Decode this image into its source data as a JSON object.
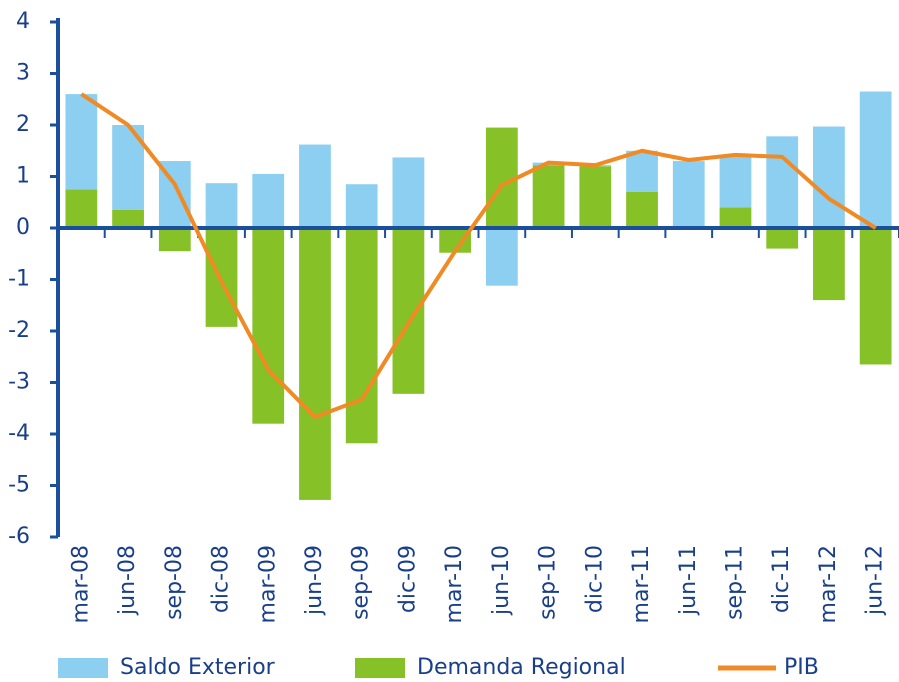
{
  "chart_data": {
    "type": "bar",
    "categories": [
      "mar-08",
      "jun-08",
      "sep-08",
      "dic-08",
      "mar-09",
      "jun-09",
      "sep-09",
      "dic-09",
      "mar-10",
      "jun-10",
      "sep-10",
      "dic-10",
      "mar-11",
      "jun-11",
      "sep-11",
      "dic-11",
      "mar-12",
      "jun-12"
    ],
    "series": [
      {
        "name": "Saldo Exterior",
        "color": "#8ccff0",
        "type": "bar",
        "values": [
          1.85,
          1.65,
          1.3,
          0.87,
          1.05,
          1.62,
          0.85,
          1.37,
          0,
          -1.12,
          0.05,
          0.02,
          0.8,
          1.3,
          1.0,
          1.78,
          1.97,
          2.65
        ]
      },
      {
        "name": "Demanda Regional",
        "color": "#86c227",
        "type": "bar",
        "values": [
          0.75,
          0.35,
          -0.45,
          -1.92,
          -3.8,
          -5.28,
          -4.18,
          -3.22,
          -0.48,
          1.95,
          1.22,
          1.2,
          0.7,
          0,
          0.4,
          -0.4,
          -1.4,
          -2.65
        ]
      },
      {
        "name": "PIB",
        "color": "#f08a24",
        "type": "line",
        "values": [
          2.6,
          2.0,
          0.85,
          -1.05,
          -2.75,
          -3.67,
          -3.33,
          -1.85,
          -0.45,
          0.83,
          1.27,
          1.22,
          1.5,
          1.32,
          1.42,
          1.38,
          0.57,
          0
        ]
      }
    ],
    "stacked": true,
    "ylim": [
      -6,
      4
    ],
    "yticks": [
      -6,
      -5,
      -4,
      -3,
      -2,
      -1,
      0,
      1,
      2,
      3,
      4
    ]
  }
}
